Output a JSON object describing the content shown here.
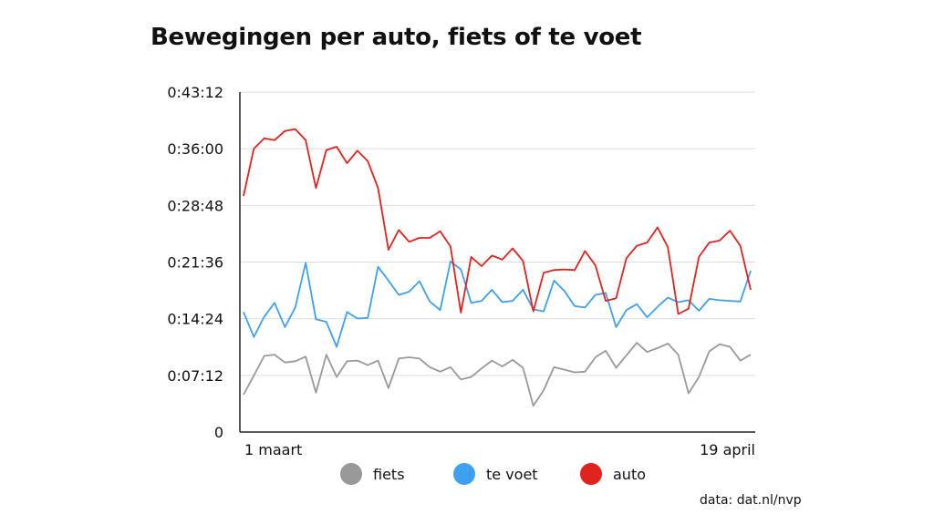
{
  "chart_data": {
    "type": "line",
    "title": "Bewegingen per auto, fiets of te voet",
    "y_ticks": [
      "0:43:12",
      "0:36:00",
      "0:28:48",
      "0:21:36",
      "0:14:24",
      "0:07:12",
      "0"
    ],
    "y_tick_seconds": [
      2592,
      2160,
      1728,
      1296,
      864,
      432,
      0
    ],
    "ylim_seconds": [
      0,
      2592
    ],
    "x_labels": [
      "1 maart",
      "19 april"
    ],
    "x_range": [
      "2020-03-01",
      "2020-04-19"
    ],
    "grid": "horizontal",
    "series": [
      {
        "name": "fiets",
        "color": "#999999",
        "values_seconds": [
          285,
          430,
          580,
          590,
          530,
          540,
          575,
          300,
          590,
          420,
          540,
          545,
          510,
          545,
          335,
          560,
          570,
          560,
          495,
          460,
          495,
          400,
          420,
          485,
          545,
          500,
          550,
          490,
          200,
          320,
          495,
          475,
          455,
          460,
          570,
          620,
          490,
          585,
          680,
          610,
          640,
          675,
          590,
          295,
          420,
          615,
          670,
          650,
          545,
          590
        ]
      },
      {
        "name": "te voet",
        "color": "#3fa0f0",
        "values_seconds": [
          915,
          725,
          880,
          985,
          800,
          950,
          1290,
          860,
          840,
          650,
          915,
          865,
          870,
          1260,
          1155,
          1045,
          1070,
          1150,
          995,
          930,
          1300,
          1240,
          985,
          1000,
          1085,
          990,
          1000,
          1085,
          935,
          920,
          1155,
          1075,
          960,
          950,
          1045,
          1060,
          800,
          930,
          975,
          875,
          955,
          1025,
          990,
          1005,
          925,
          1015,
          1005,
          1000,
          995,
          1230
        ]
      },
      {
        "name": "auto",
        "color": "#e0231e",
        "values_seconds": [
          1800,
          2160,
          2240,
          2225,
          2295,
          2310,
          2225,
          1860,
          2150,
          2175,
          2050,
          2145,
          2065,
          1860,
          1390,
          1540,
          1450,
          1480,
          1480,
          1530,
          1415,
          910,
          1335,
          1265,
          1345,
          1315,
          1400,
          1305,
          920,
          1215,
          1235,
          1240,
          1235,
          1380,
          1270,
          1000,
          1020,
          1325,
          1420,
          1445,
          1560,
          1410,
          900,
          940,
          1335,
          1445,
          1460,
          1535,
          1420,
          1085
        ]
      }
    ],
    "legend_position": "bottom"
  },
  "source_note": "data: dat.nl/nvp"
}
